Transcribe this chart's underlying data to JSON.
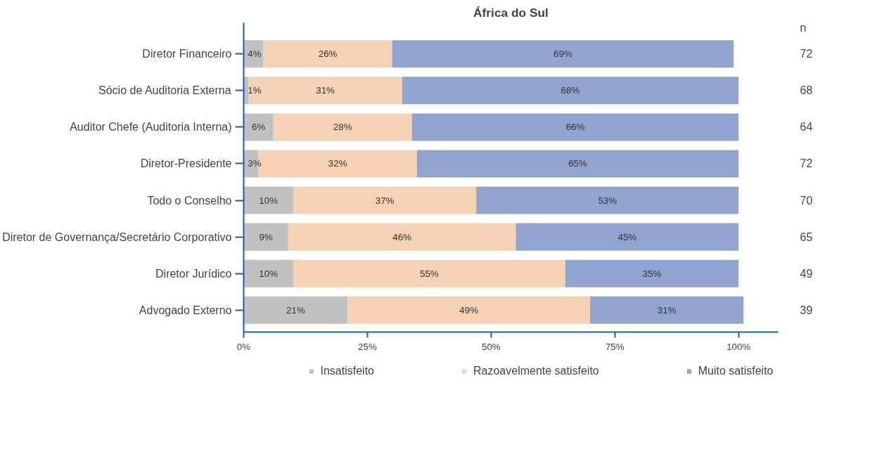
{
  "chart_data": {
    "type": "bar",
    "orientation": "horizontal",
    "stacked": true,
    "title": "África do Sul",
    "categories": [
      "Diretor Financeiro",
      "Sócio de Auditoria Externa",
      "Auditor Chefe (Auditoria Interna)",
      "Diretor-Presidente",
      "Todo o Conselho",
      "Diretor de Governança/Secretário Corporativo",
      "Diretor Jurídico",
      "Advogado Externo"
    ],
    "series": [
      {
        "name": "Insatisfeito",
        "color": "#c0c1c3",
        "values": [
          4,
          1,
          6,
          3,
          10,
          9,
          10,
          21
        ]
      },
      {
        "name": "Razoavelmente satisfeito",
        "color": "#f4d2b3",
        "values": [
          26,
          31,
          28,
          32,
          37,
          46,
          55,
          49
        ]
      },
      {
        "name": "Muito satisfeito",
        "color": "#91a3cf",
        "values": [
          69,
          68,
          66,
          65,
          53,
          45,
          35,
          31
        ]
      }
    ],
    "xlim": [
      0,
      108
    ],
    "xticks": [
      {
        "value": 0,
        "label": "0%"
      },
      {
        "value": 25,
        "label": "25%"
      },
      {
        "value": 50,
        "label": "50%"
      },
      {
        "value": 75,
        "label": "75%"
      },
      {
        "value": 100,
        "label": "100%"
      }
    ],
    "value_labels": [
      [
        "4%",
        "1%",
        "6%",
        "3%",
        "10%",
        "9%",
        "10%",
        "21%"
      ],
      [
        "26%",
        "31%",
        "28%",
        "32%",
        "37%",
        "46%",
        "55%",
        "49%"
      ],
      [
        "69%",
        "68%",
        "66%",
        "65%",
        "53%",
        "45%",
        "35%",
        "31%"
      ]
    ],
    "annotations": [
      "n",
      "72",
      "68",
      "64",
      "72",
      "70",
      "65",
      "49",
      "39"
    ],
    "grid": false,
    "legend": "bottom"
  }
}
